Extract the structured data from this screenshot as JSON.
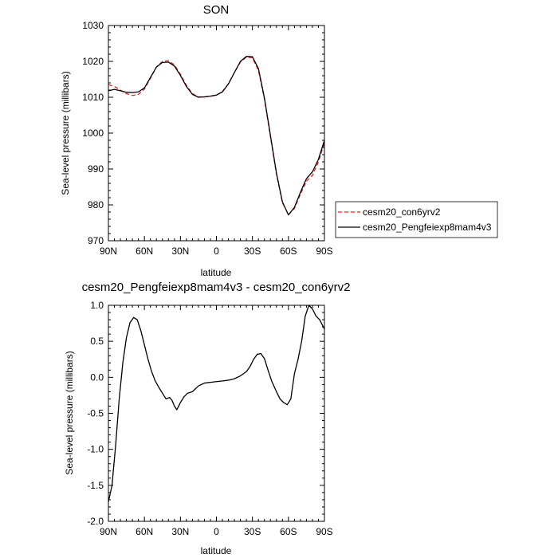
{
  "chart_data": [
    {
      "type": "line",
      "title": "SON",
      "xlabel": "latitude",
      "ylabel": "Sea-level pressure (millibars)",
      "xlim": [
        90,
        -90
      ],
      "ylim": [
        970,
        1030
      ],
      "xticks": [
        90,
        60,
        30,
        0,
        -30,
        -60,
        -90
      ],
      "xtick_labels": [
        "90N",
        "60N",
        "30N",
        "0",
        "30S",
        "60S",
        "90S"
      ],
      "yticks": [
        970,
        980,
        990,
        1000,
        1010,
        1020,
        1030
      ],
      "ytick_labels": [
        "970",
        "980",
        "990",
        "1000",
        "1010",
        "1020",
        "1030"
      ],
      "legend_position": "outside-right",
      "series": [
        {
          "name": "cesm20_con6yrv2",
          "color": "#e8201e",
          "dash": "dashed",
          "x": [
            90,
            85,
            80,
            75,
            70,
            65,
            60,
            55,
            50,
            45,
            40,
            35,
            30,
            25,
            20,
            15,
            10,
            5,
            0,
            -5,
            -10,
            -15,
            -20,
            -25,
            -30,
            -35,
            -40,
            -45,
            -50,
            -55,
            -60,
            -65,
            -70,
            -75,
            -80,
            -85,
            -90
          ],
          "y": [
            1013.5,
            1013.0,
            1012.0,
            1011.0,
            1010.5,
            1010.8,
            1012.3,
            1015.3,
            1018.4,
            1020.0,
            1020.2,
            1019.0,
            1016.4,
            1013.3,
            1011.0,
            1010.1,
            1010.1,
            1010.3,
            1010.6,
            1011.6,
            1013.8,
            1016.9,
            1019.8,
            1021.2,
            1021.0,
            1017.5,
            1009.5,
            999.0,
            988.6,
            980.6,
            977.3,
            979.0,
            983.0,
            986.6,
            988.2,
            992.0,
            997.3
          ]
        },
        {
          "name": "cesm20_Pengfeiexp8mam4v3",
          "color": "#000000",
          "dash": "solid",
          "x": [
            90,
            85,
            80,
            75,
            70,
            65,
            60,
            55,
            50,
            45,
            40,
            35,
            30,
            25,
            20,
            15,
            10,
            5,
            0,
            -5,
            -10,
            -15,
            -20,
            -25,
            -30,
            -35,
            -40,
            -45,
            -50,
            -55,
            -60,
            -65,
            -70,
            -75,
            -80,
            -85,
            -90
          ],
          "y": [
            1011.8,
            1012.2,
            1011.8,
            1011.4,
            1011.3,
            1011.5,
            1012.6,
            1015.5,
            1018.4,
            1019.7,
            1019.8,
            1018.7,
            1016.1,
            1013.0,
            1010.8,
            1010.0,
            1010.1,
            1010.3,
            1010.6,
            1011.5,
            1013.7,
            1016.9,
            1020.0,
            1021.4,
            1021.3,
            1018.0,
            1009.8,
            999.4,
            988.9,
            980.8,
            977.2,
            979.3,
            983.5,
            987.3,
            989.2,
            992.7,
            998.0
          ]
        }
      ]
    },
    {
      "type": "line",
      "title": "cesm20_Pengfeiexp8mam4v3 - cesm20_con6yrv2",
      "xlabel": "latitude",
      "ylabel": "Sea-level pressure (millibars)",
      "xlim": [
        90,
        -90
      ],
      "ylim": [
        -2.0,
        1.0
      ],
      "xticks": [
        90,
        60,
        30,
        0,
        -30,
        -60,
        -90
      ],
      "xtick_labels": [
        "90N",
        "60N",
        "30N",
        "0",
        "30S",
        "60S",
        "90S"
      ],
      "yticks": [
        -2.0,
        -1.5,
        -1.0,
        -0.5,
        0.0,
        0.5,
        1.0
      ],
      "ytick_labels": [
        "-2.0",
        "-1.5",
        "-1.0",
        "-0.5",
        "0.0",
        "0.5",
        "1.0"
      ],
      "series": [
        {
          "color": "#000000",
          "dash": "solid",
          "x": [
            90,
            87,
            84,
            81,
            78,
            75,
            72,
            69,
            66,
            63,
            60,
            57,
            54,
            51,
            48,
            45,
            42,
            39,
            37,
            35,
            33,
            30,
            27,
            24,
            20,
            15,
            10,
            5,
            0,
            -5,
            -10,
            -15,
            -20,
            -25,
            -28,
            -31,
            -34,
            -37,
            -40,
            -43,
            -46,
            -50,
            -53,
            -56,
            -59,
            -62,
            -65,
            -68,
            -71,
            -74,
            -77,
            -80,
            -83,
            -86,
            -90
          ],
          "y": [
            -1.73,
            -1.5,
            -0.95,
            -0.3,
            0.2,
            0.55,
            0.76,
            0.83,
            0.8,
            0.65,
            0.45,
            0.25,
            0.08,
            -0.05,
            -0.14,
            -0.22,
            -0.3,
            -0.28,
            -0.32,
            -0.4,
            -0.45,
            -0.35,
            -0.27,
            -0.22,
            -0.2,
            -0.12,
            -0.08,
            -0.07,
            -0.06,
            -0.05,
            -0.04,
            -0.02,
            0.02,
            0.08,
            0.15,
            0.25,
            0.32,
            0.33,
            0.26,
            0.1,
            -0.05,
            -0.2,
            -0.3,
            -0.35,
            -0.38,
            -0.3,
            0.05,
            0.25,
            0.5,
            0.85,
            1.0,
            0.95,
            0.85,
            0.8,
            0.67
          ]
        }
      ]
    }
  ]
}
